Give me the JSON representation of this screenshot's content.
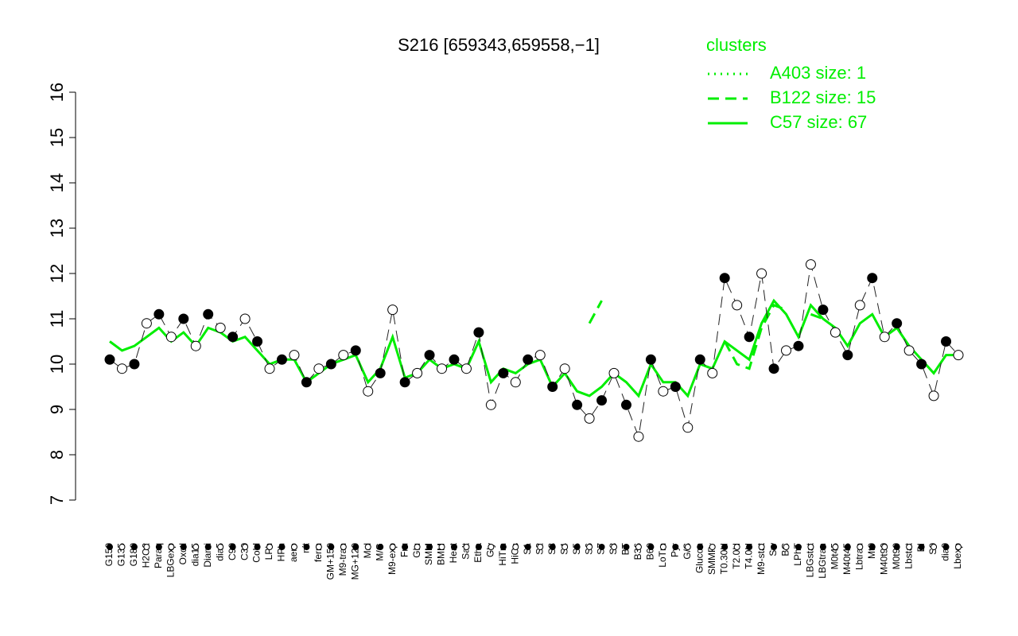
{
  "chart_data": {
    "type": "line",
    "title": "S216 [659343,659558,−1]",
    "categories": [
      "G150",
      "G135",
      "G180",
      "H2O2",
      "Paraq",
      "LBGexp",
      "Oxctl",
      "dia15",
      "Diami",
      "dia5",
      "C90",
      "C30",
      "Cold",
      "LPh",
      "HPh",
      "aero",
      "nit",
      "ferm",
      "GM+150",
      "M9-tran",
      "MG+120",
      "Mal",
      "M/G",
      "M9-exp",
      "Fru",
      "Glu",
      "SMM",
      "BMM",
      "Heat",
      "Salt",
      "Etha",
      "Gly",
      "HiTm",
      "HiOs",
      "S1",
      "S2",
      "S3",
      "S4",
      "S5",
      "S6",
      "S7",
      "S8",
      "BT",
      "B36",
      "B60",
      "LoTm",
      "Pyr",
      "G/S",
      "Glucon",
      "SMMPr",
      "T0.30H",
      "T2.0H",
      "T4.0H",
      "M9-stat",
      "Sw",
      "BC",
      "LPhT",
      "LBGstat",
      "LBGtran",
      "M0t45",
      "M40t45",
      "Lbtran",
      "Mt0",
      "M40t90",
      "M0t90",
      "Lbstat",
      "BI",
      "S0",
      "dia0",
      "Lbexp"
    ],
    "values": [
      10.1,
      9.9,
      10.0,
      10.9,
      11.1,
      10.6,
      11.0,
      10.4,
      11.1,
      10.8,
      10.6,
      11.0,
      10.5,
      9.9,
      10.1,
      10.2,
      9.6,
      9.9,
      10.0,
      10.2,
      10.3,
      9.4,
      9.8,
      11.2,
      9.6,
      9.8,
      10.2,
      9.9,
      10.1,
      9.9,
      10.7,
      9.1,
      9.8,
      9.6,
      10.1,
      10.2,
      9.5,
      9.9,
      9.1,
      8.8,
      9.2,
      9.8,
      9.1,
      8.4,
      10.1,
      9.4,
      9.5,
      8.6,
      10.1,
      9.8,
      11.9,
      11.3,
      10.6,
      12.0,
      9.9,
      10.3,
      10.4,
      12.2,
      11.2,
      10.7,
      10.2,
      11.3,
      11.9,
      10.6,
      10.9,
      10.3,
      10.0,
      9.3,
      10.5,
      10.2
    ],
    "series": [
      {
        "name": "A403 size: 1",
        "color": "#00ee00",
        "style": "dotted",
        "values": [
          null,
          null,
          null,
          null,
          null,
          null,
          null,
          null,
          null,
          null,
          null,
          null,
          null,
          null,
          null,
          null,
          null,
          null,
          null,
          null,
          null,
          null,
          null,
          null,
          null,
          null,
          null,
          null,
          null,
          null,
          null,
          null,
          null,
          null,
          null,
          null,
          null,
          null,
          null,
          null,
          null,
          null,
          null,
          null,
          null,
          null,
          null,
          null,
          null,
          null,
          null,
          null,
          null,
          null,
          null,
          null,
          null,
          null,
          null,
          null,
          null,
          null,
          null,
          null,
          null,
          null,
          null,
          null,
          null,
          null
        ]
      },
      {
        "name": "B122 size: 15",
        "color": "#00ee00",
        "style": "dashed",
        "values": [
          null,
          null,
          null,
          null,
          null,
          null,
          null,
          null,
          null,
          null,
          null,
          null,
          null,
          null,
          null,
          null,
          null,
          null,
          null,
          null,
          null,
          null,
          null,
          null,
          null,
          null,
          null,
          null,
          null,
          null,
          null,
          null,
          null,
          null,
          null,
          null,
          null,
          null,
          null,
          10.9,
          11.4,
          null,
          null,
          null,
          null,
          null,
          null,
          null,
          null,
          null,
          10.5,
          10.0,
          9.9,
          10.8,
          11.3,
          11.2,
          null,
          11.1,
          11.0,
          null,
          null,
          null,
          null,
          null,
          null,
          null,
          null,
          null,
          null,
          null
        ]
      },
      {
        "name": "C57 size: 67",
        "color": "#00ee00",
        "style": "solid",
        "values": [
          10.5,
          10.3,
          10.4,
          10.6,
          10.8,
          10.5,
          10.7,
          10.4,
          10.8,
          10.7,
          10.5,
          10.6,
          10.3,
          10.0,
          10.1,
          10.1,
          9.6,
          9.8,
          10.0,
          10.1,
          10.2,
          9.6,
          9.9,
          10.6,
          9.7,
          9.8,
          10.1,
          9.9,
          10.0,
          9.9,
          10.5,
          9.6,
          9.9,
          9.8,
          10.0,
          10.1,
          9.5,
          9.8,
          9.4,
          9.3,
          9.5,
          9.8,
          9.6,
          9.3,
          10.0,
          9.6,
          9.6,
          9.3,
          10.0,
          9.9,
          10.5,
          10.3,
          10.1,
          10.9,
          11.4,
          11.1,
          10.6,
          11.3,
          11.0,
          10.8,
          10.4,
          10.9,
          11.1,
          10.6,
          10.8,
          10.4,
          10.1,
          9.8,
          10.2,
          10.2
        ]
      }
    ],
    "ylim": [
      7,
      16
    ],
    "yticks": [
      7,
      8,
      9,
      10,
      11,
      12,
      13,
      14,
      15,
      16
    ],
    "legend_title": "clusters",
    "legend": "top-right"
  }
}
